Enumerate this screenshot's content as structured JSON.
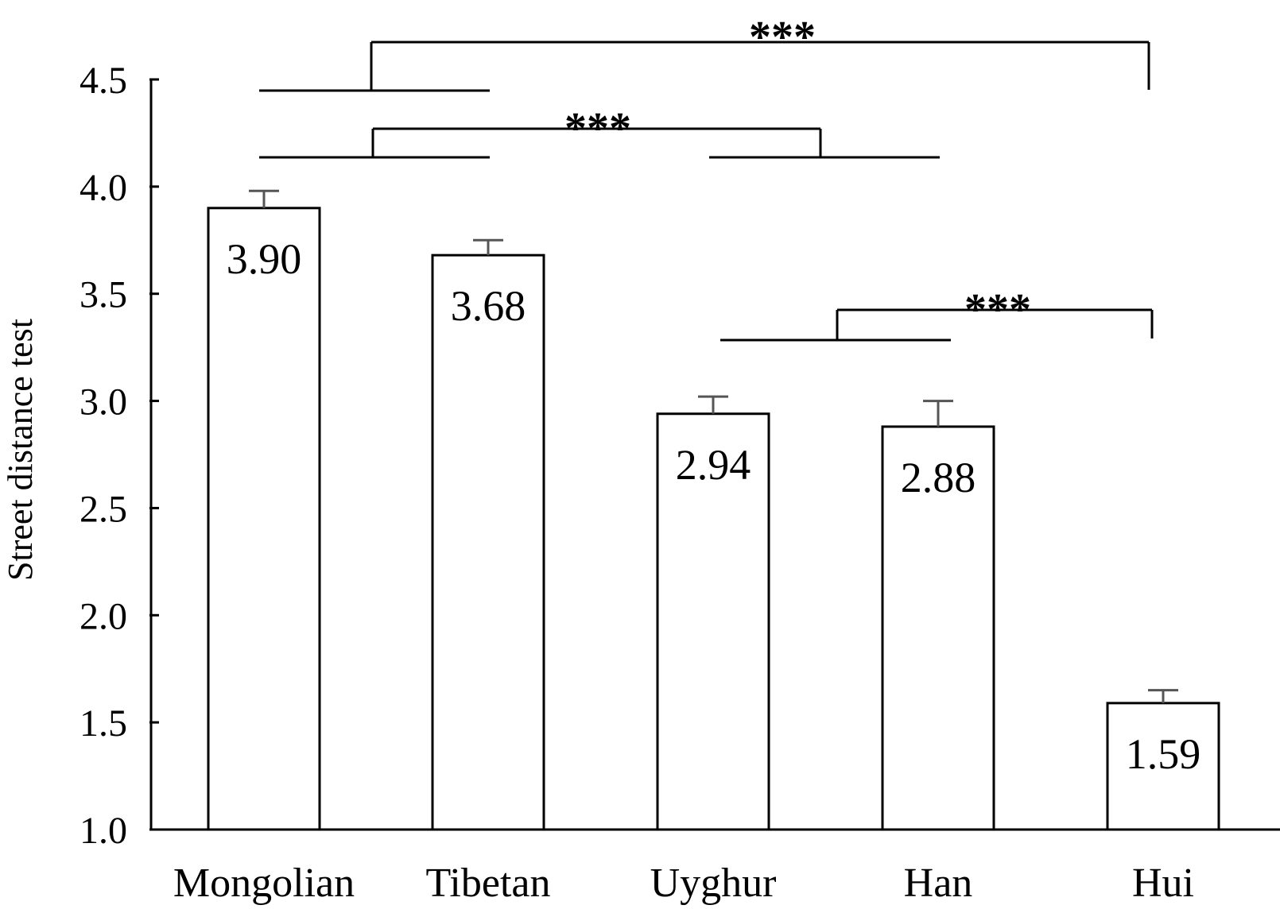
{
  "chart_data": {
    "type": "bar",
    "ylabel": "Street distance test",
    "ylim": [
      1.0,
      4.5
    ],
    "yticks": [
      "1.0",
      "1.5",
      "2.0",
      "2.5",
      "3.0",
      "3.5",
      "4.0",
      "4.5"
    ],
    "categories": [
      "Mongolian",
      "Tibetan",
      "Uyghur",
      "Han",
      "Hui"
    ],
    "values": [
      3.9,
      3.68,
      2.94,
      2.88,
      1.59
    ],
    "value_labels": [
      "3.90",
      "3.68",
      "2.94",
      "2.88",
      "1.59"
    ],
    "error_upper": [
      0.08,
      0.07,
      0.08,
      0.12,
      0.06
    ],
    "bar_fill": "#ffffff",
    "bar_stroke": "#000000",
    "error_bar_color": "#555555",
    "grid": false,
    "significance": [
      {
        "left_group": [
          "Mongolian",
          "Tibetan"
        ],
        "right_group": [
          "Hui"
        ],
        "label": "***"
      },
      {
        "left_group": [
          "Mongolian",
          "Tibetan"
        ],
        "right_group": [
          "Uyghur",
          "Han"
        ],
        "label": "***"
      },
      {
        "left_group": [
          "Uyghur",
          "Han"
        ],
        "right_group": [
          "Hui"
        ],
        "label": "***"
      }
    ]
  }
}
